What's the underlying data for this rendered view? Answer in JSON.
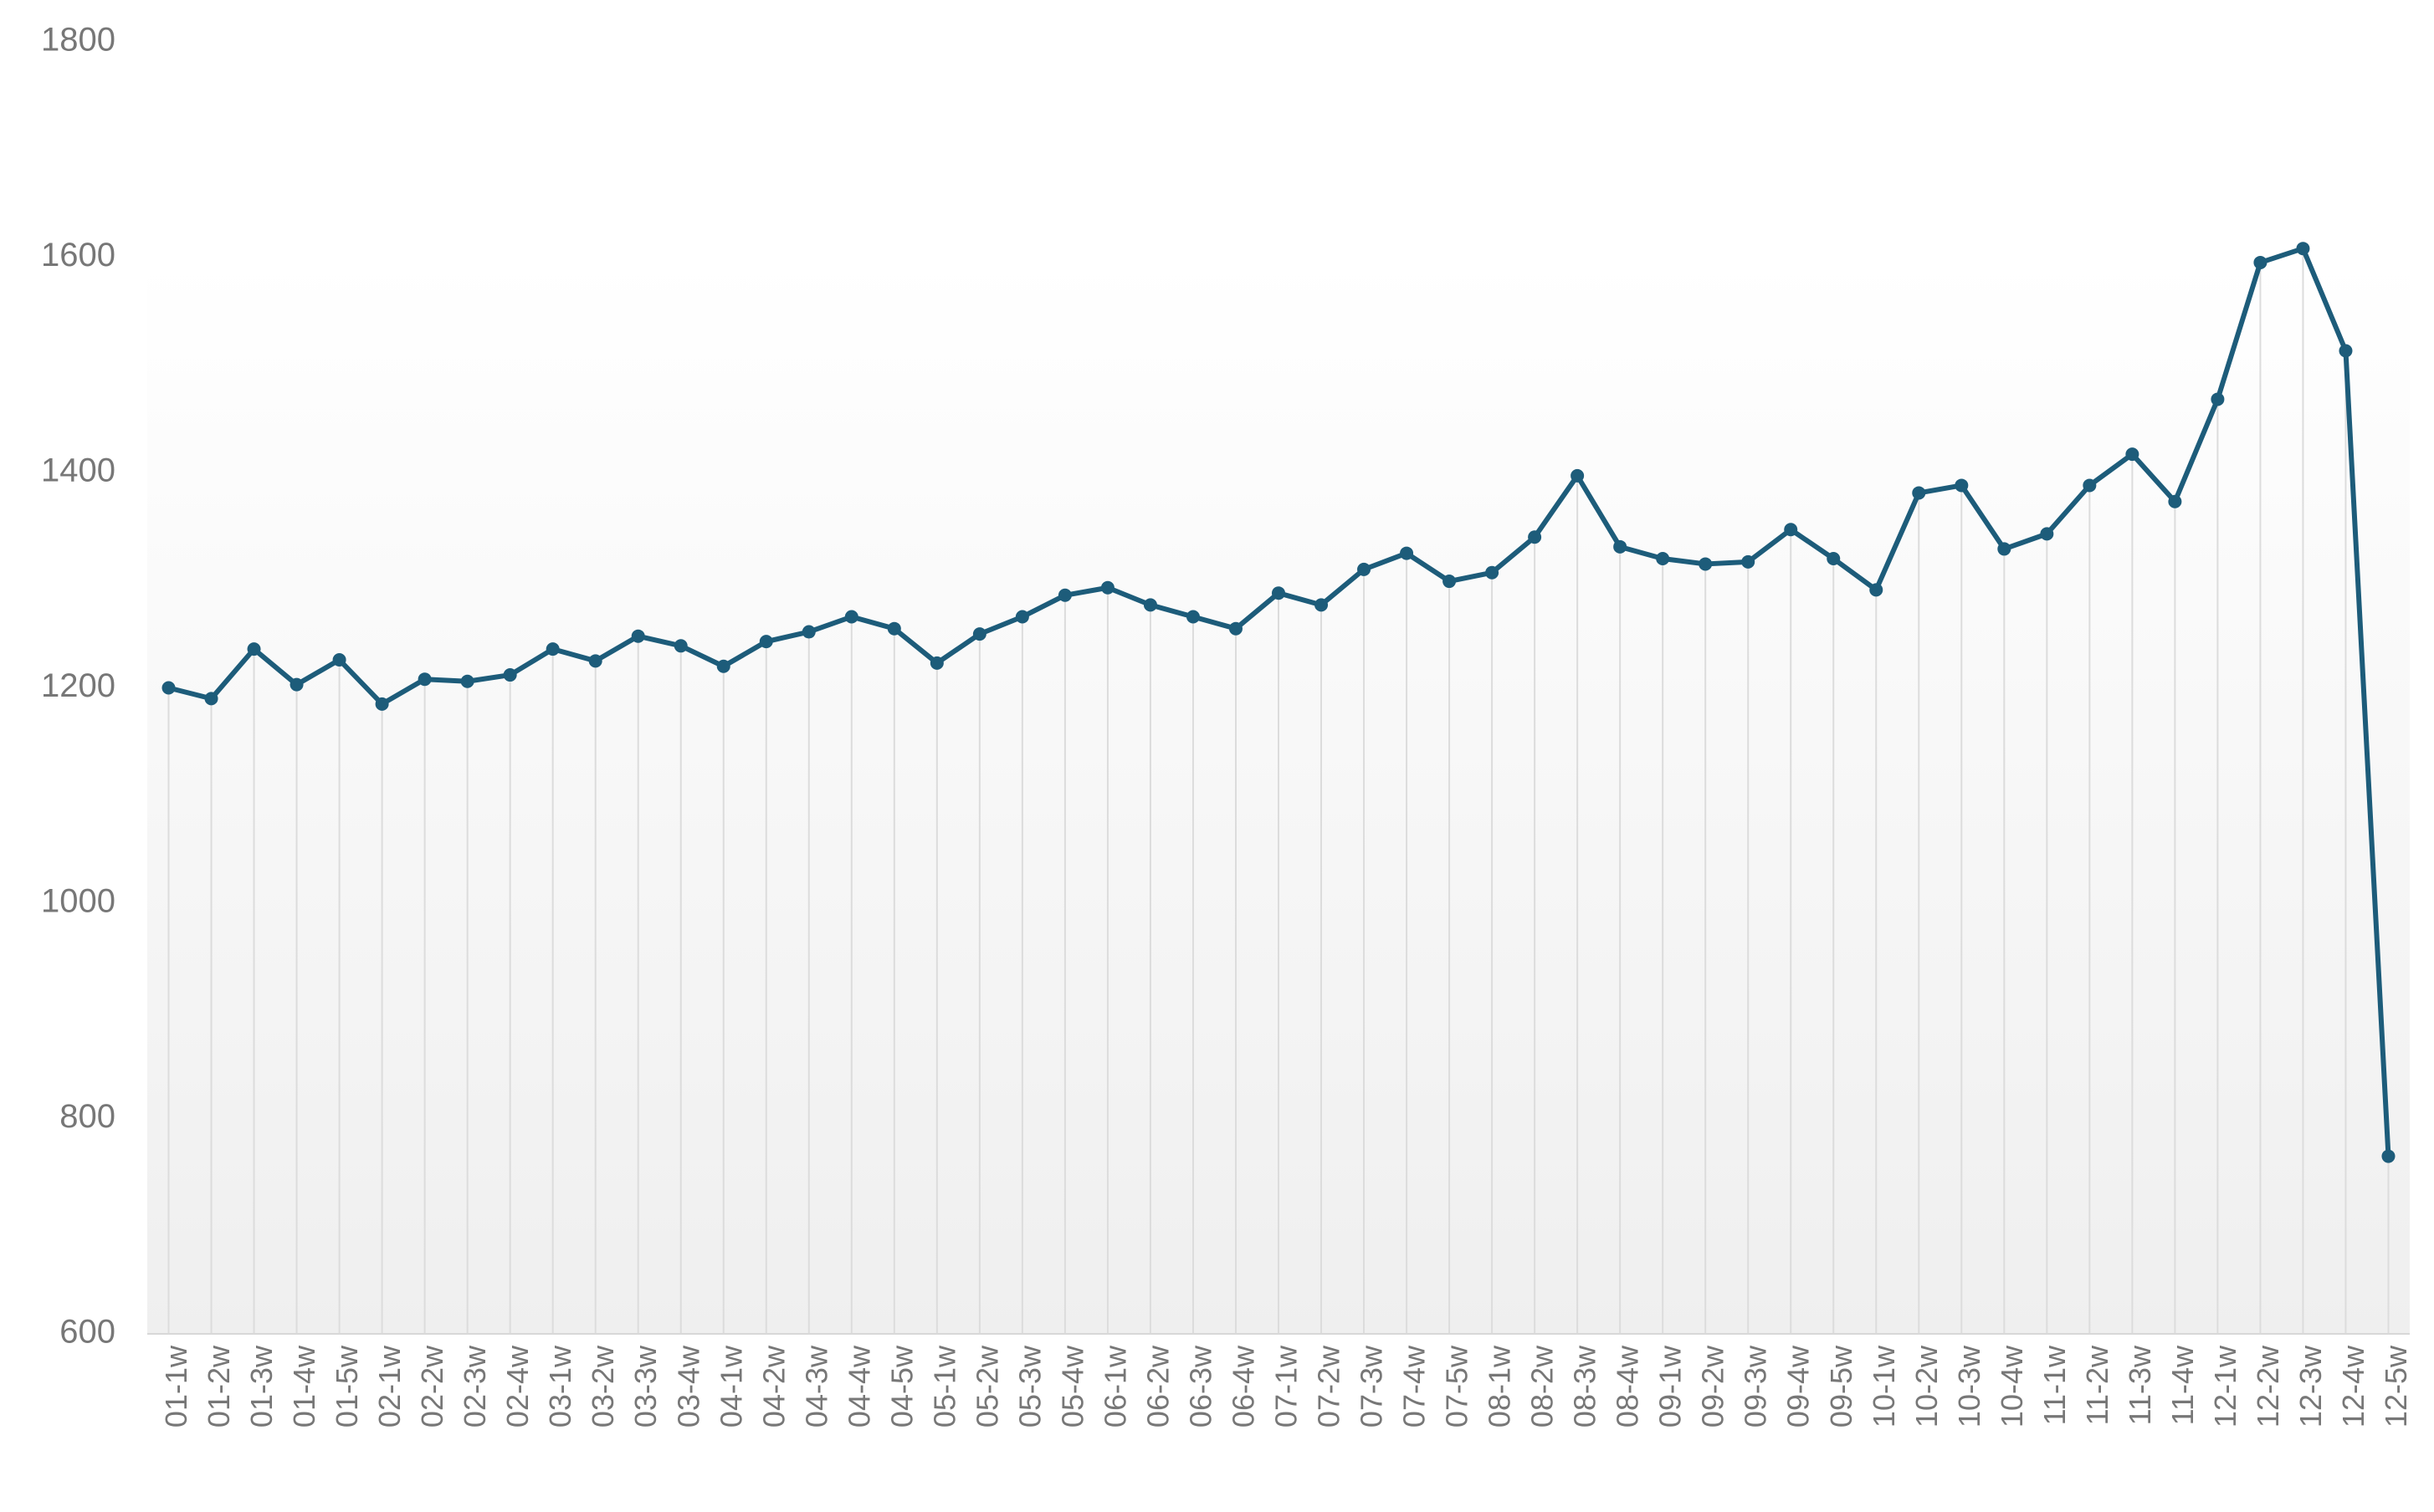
{
  "chart_data": {
    "type": "line",
    "categories": [
      "01-1w",
      "01-2w",
      "01-3w",
      "01-4w",
      "01-5w",
      "02-1w",
      "02-2w",
      "02-3w",
      "02-4w",
      "03-1w",
      "03-2w",
      "03-3w",
      "03-4w",
      "04-1w",
      "04-2w",
      "04-3w",
      "04-4w",
      "04-5w",
      "05-1w",
      "05-2w",
      "05-3w",
      "05-4w",
      "06-1w",
      "06-2w",
      "06-3w",
      "06-4w",
      "07-1w",
      "07-2w",
      "07-3w",
      "07-4w",
      "07-5w",
      "08-1w",
      "08-2w",
      "08-3w",
      "08-4w",
      "09-1w",
      "09-2w",
      "09-3w",
      "09-4w",
      "09-5w",
      "10-1w",
      "10-2w",
      "10-3w",
      "10-4w",
      "11-1w",
      "11-2w",
      "11-3w",
      "11-4w",
      "12-1w",
      "12-2w",
      "12-3w",
      "12-4w",
      "12-5w"
    ],
    "values": [
      1200,
      1190,
      1236,
      1203,
      1226,
      1185,
      1208,
      1206,
      1212,
      1236,
      1225,
      1248,
      1239,
      1220,
      1243,
      1252,
      1266,
      1255,
      1223,
      1250,
      1266,
      1286,
      1293,
      1277,
      1266,
      1255,
      1288,
      1277,
      1310,
      1325,
      1299,
      1307,
      1340,
      1397,
      1331,
      1320,
      1315,
      1317,
      1347,
      1320,
      1291,
      1381,
      1388,
      1329,
      1343,
      1388,
      1417,
      1373,
      1468,
      1595,
      1608,
      1513,
      765
    ],
    "color": "#1d5c7a",
    "ylim": [
      600,
      1800
    ],
    "yticks": [
      600,
      800,
      1000,
      1200,
      1400,
      1600,
      1800
    ]
  }
}
